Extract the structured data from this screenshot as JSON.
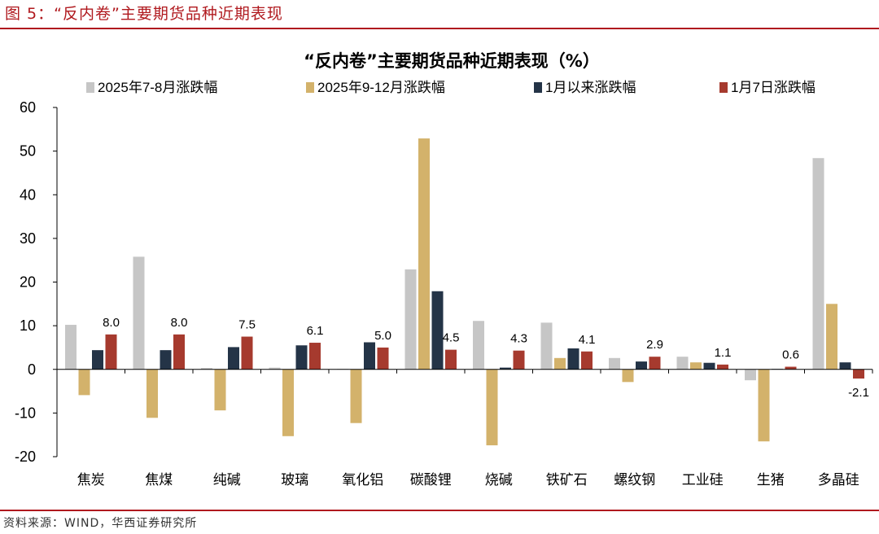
{
  "figure": {
    "caption": "图 5：“反内卷”主要期货品种近期表现",
    "source": "资料来源：WIND，华西证券研究所"
  },
  "colors": {
    "brand_red": "#b0191e",
    "series": [
      "#c6c6c6",
      "#d3b26b",
      "#243447",
      "#a63a2e"
    ]
  },
  "chart_data": {
    "type": "bar",
    "title": "“反内卷”主要期货品种近期表现（%）",
    "xlabel": "",
    "ylabel": "",
    "ylim": [
      -20,
      60
    ],
    "yticks": [
      -20,
      -10,
      0,
      10,
      20,
      30,
      40,
      50,
      60
    ],
    "grid": false,
    "legend_position": "top",
    "categories": [
      "焦炭",
      "焦煤",
      "纯碱",
      "玻璃",
      "氧化铝",
      "碳酸锂",
      "烧碱",
      "铁矿石",
      "螺纹钢",
      "工业硅",
      "生猪",
      "多晶硅"
    ],
    "series": [
      {
        "name": "2025年7-8月涨跌幅",
        "values": [
          10.2,
          25.8,
          0.3,
          0.4,
          0.1,
          22.9,
          11.1,
          10.7,
          2.6,
          2.9,
          -2.5,
          48.4
        ]
      },
      {
        "name": "2025年9-12月涨跌幅",
        "values": [
          -5.9,
          -11.1,
          -9.4,
          -15.3,
          -12.3,
          52.9,
          -17.4,
          2.6,
          -2.9,
          1.6,
          -16.5,
          15.0
        ]
      },
      {
        "name": "1月以来涨跌幅",
        "values": [
          4.4,
          4.4,
          5.1,
          5.5,
          6.2,
          17.9,
          0.4,
          4.8,
          1.8,
          1.5,
          0.1,
          1.6
        ]
      },
      {
        "name": "1月7日涨跌幅",
        "values": [
          8.0,
          8.0,
          7.5,
          6.1,
          5.0,
          4.5,
          4.3,
          4.1,
          2.9,
          1.1,
          0.6,
          -2.1
        ]
      }
    ],
    "data_labels": {
      "series_index": 3,
      "values": [
        "8.0",
        "8.0",
        "7.5",
        "6.1",
        "5.0",
        "4.5",
        "4.3",
        "4.1",
        "2.9",
        "1.1",
        "0.6",
        "-2.1"
      ]
    }
  }
}
